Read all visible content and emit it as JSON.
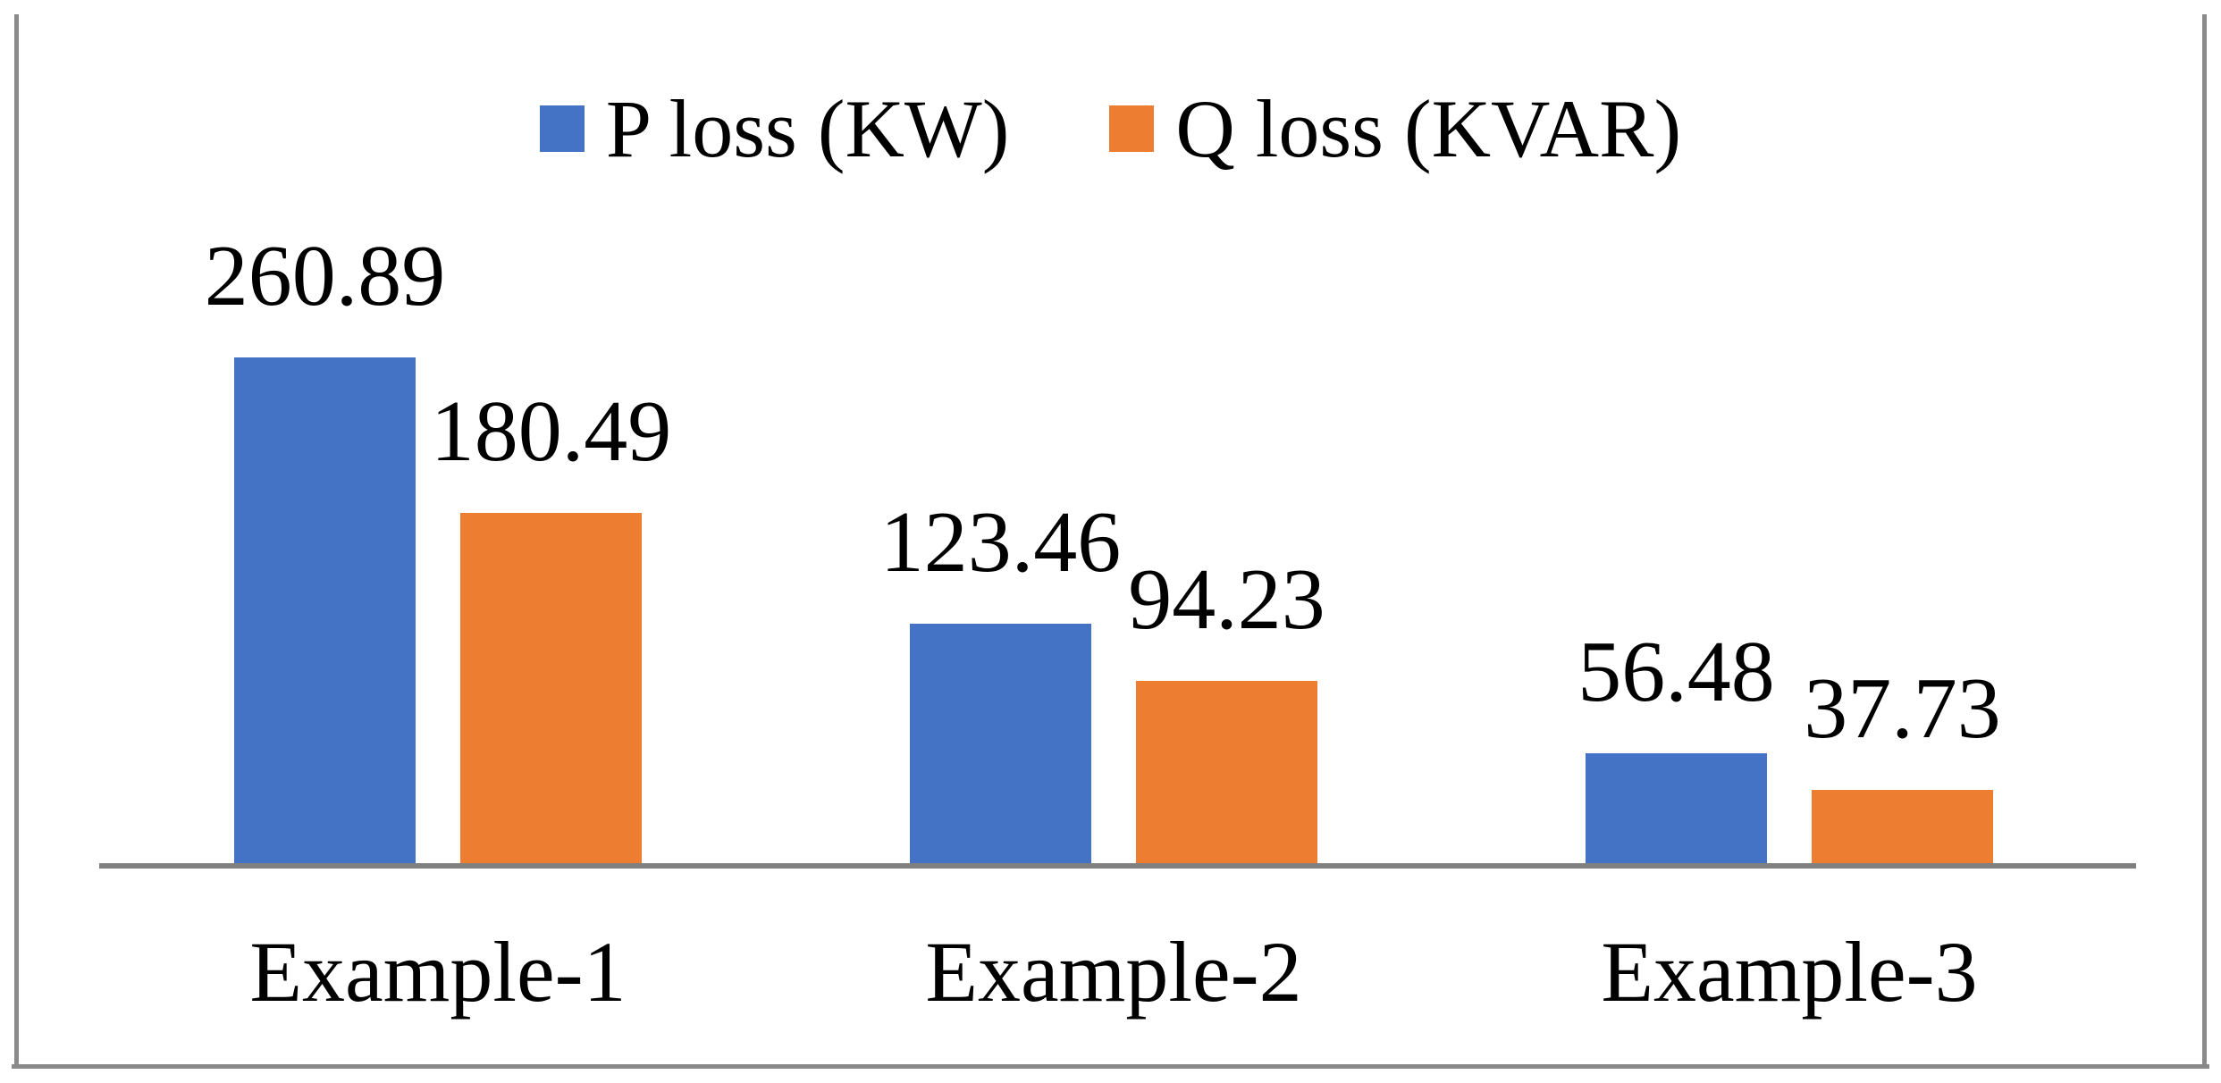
{
  "chart_data": {
    "type": "bar",
    "title": "",
    "xlabel": "",
    "ylabel": "",
    "categories": [
      "Example-1",
      "Example-2",
      "Example-3"
    ],
    "series": [
      {
        "name": "P loss (KW)",
        "color": "#4472C4",
        "values": [
          260.89,
          123.46,
          56.48
        ],
        "labels": [
          "260.89",
          "123.46",
          "56.48"
        ]
      },
      {
        "name": "Q loss (KVAR)",
        "color": "#ED7D31",
        "values": [
          180.49,
          94.23,
          37.73
        ],
        "labels": [
          "180.49",
          "94.23",
          "37.73"
        ]
      }
    ],
    "ylim": [
      0,
      280
    ],
    "grid": false,
    "y_axis_visible": false,
    "legend_position": "top-center",
    "data_labels_visible": true,
    "axis_color": "#808080",
    "frame_color": "#8a8a8a",
    "background_color": "#ffffff",
    "text_color": "#000000"
  }
}
